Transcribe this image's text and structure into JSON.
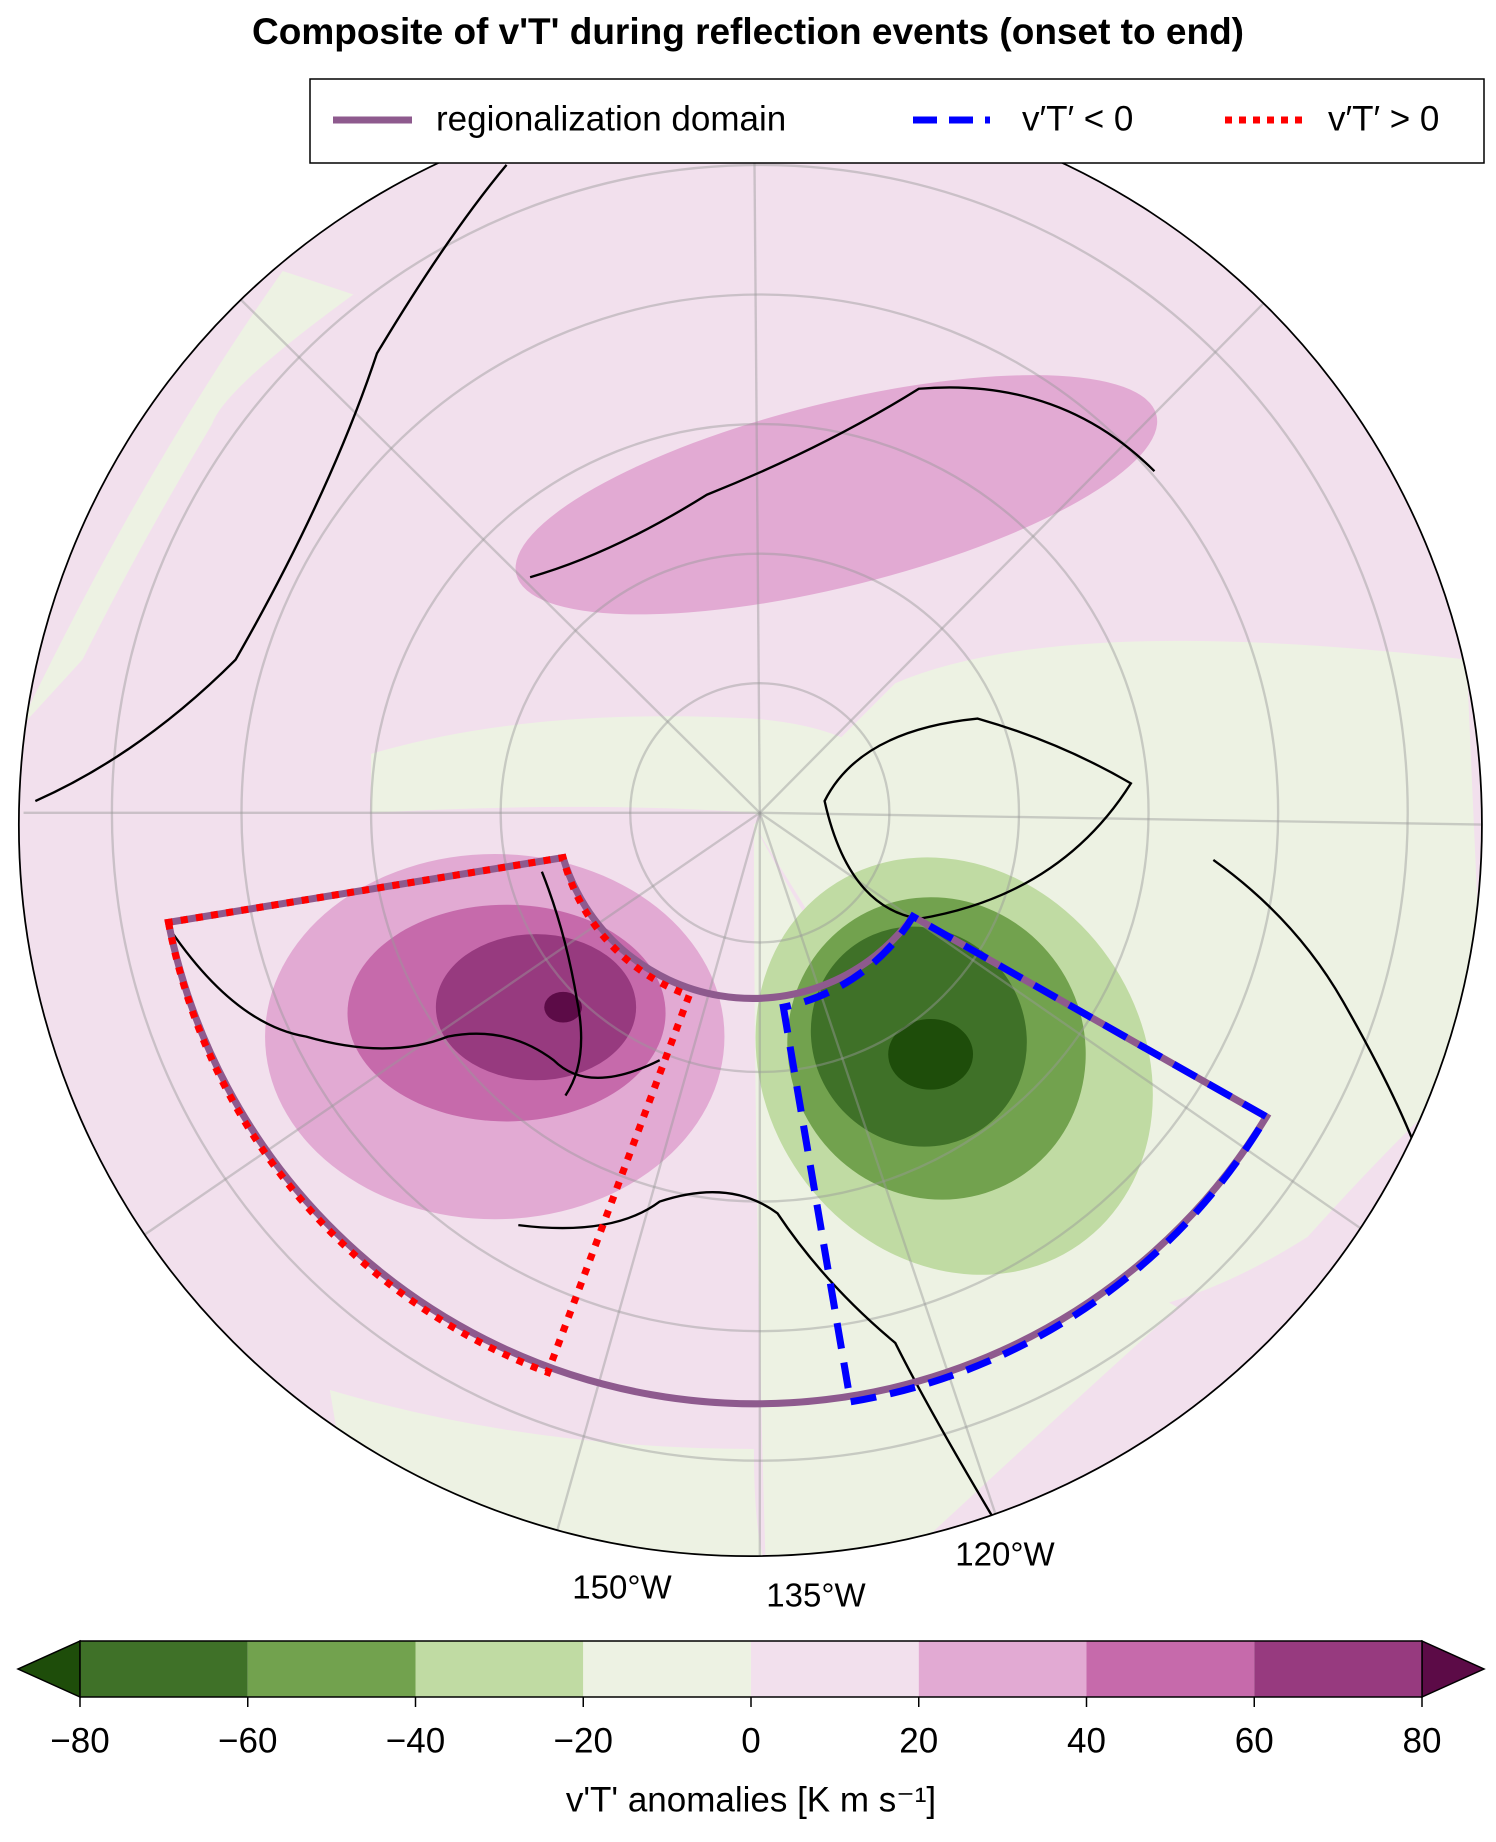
{
  "title": "Composite of v'T' during reflection events (onset to end)",
  "legend": [
    {
      "label": "regionalization domain",
      "color": "#8e5a8e",
      "style": "solid"
    },
    {
      "label": "v′T′ < 0",
      "color": "#0000ff",
      "style": "dashed"
    },
    {
      "label": "v′T′ > 0",
      "color": "#ff0000",
      "style": "dotted"
    }
  ],
  "lon_labels": [
    "150°W",
    "135°W",
    "120°W"
  ],
  "colorbar": {
    "ticks": [
      {
        "value": -80,
        "label": "−80"
      },
      {
        "value": -60,
        "label": "−60"
      },
      {
        "value": -40,
        "label": "−40"
      },
      {
        "value": -20,
        "label": "−20"
      },
      0,
      20,
      40,
      60,
      80
    ],
    "colors": [
      "#1e4d0a",
      "#3f7128",
      "#72a24e",
      "#c0dba3",
      "#edf2e3",
      "#f2e0ed",
      "#e2aad3",
      "#c66aab",
      "#973a7f",
      "#5c0b47"
    ],
    "label": "v'T' anomalies [K m s⁻¹]"
  }
}
